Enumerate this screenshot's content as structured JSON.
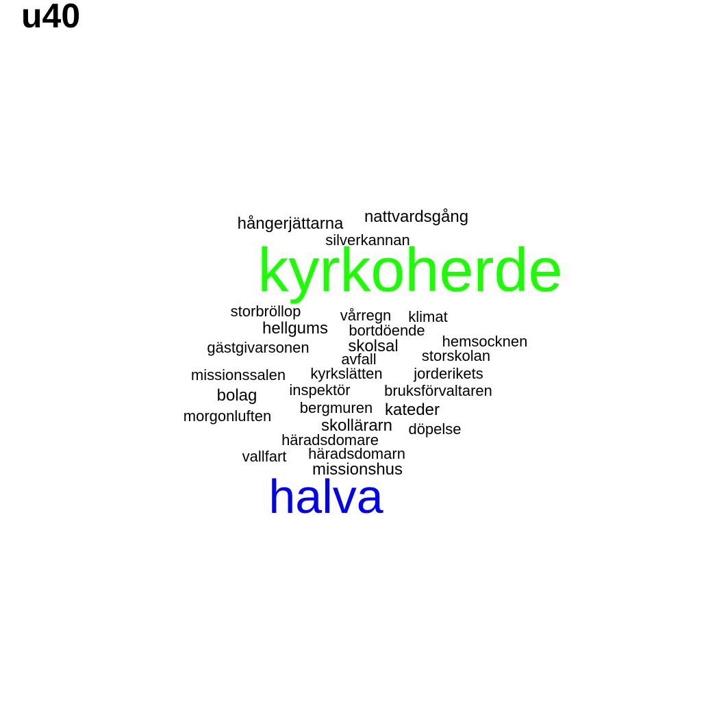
{
  "title": "u40",
  "words": [
    {
      "text": "kyrkoherde",
      "color": "#1aff00"
    },
    {
      "text": "halva",
      "color": "#0000ff"
    },
    {
      "text": "hångerjättarna",
      "color": "#000000"
    },
    {
      "text": "nattvardsgång",
      "color": "#000000"
    },
    {
      "text": "silverkannan",
      "color": "#000000"
    },
    {
      "text": "storbröllop",
      "color": "#000000"
    },
    {
      "text": "vårregn",
      "color": "#000000"
    },
    {
      "text": "klimat",
      "color": "#000000"
    },
    {
      "text": "hellgums",
      "color": "#000000"
    },
    {
      "text": "bortdöende",
      "color": "#000000"
    },
    {
      "text": "hemsocknen",
      "color": "#000000"
    },
    {
      "text": "gästgivarsonen",
      "color": "#000000"
    },
    {
      "text": "skolsal",
      "color": "#000000"
    },
    {
      "text": "storskolan",
      "color": "#000000"
    },
    {
      "text": "avfall",
      "color": "#000000"
    },
    {
      "text": "missionssalen",
      "color": "#000000"
    },
    {
      "text": "kyrkslätten",
      "color": "#000000"
    },
    {
      "text": "jorderikets",
      "color": "#000000"
    },
    {
      "text": "bolag",
      "color": "#000000"
    },
    {
      "text": "inspektör",
      "color": "#000000"
    },
    {
      "text": "bruksförvaltaren",
      "color": "#000000"
    },
    {
      "text": "morgonluften",
      "color": "#000000"
    },
    {
      "text": "bergmuren",
      "color": "#000000"
    },
    {
      "text": "kateder",
      "color": "#000000"
    },
    {
      "text": "skollärarn",
      "color": "#000000"
    },
    {
      "text": "döpelse",
      "color": "#000000"
    },
    {
      "text": "häradsdomare",
      "color": "#000000"
    },
    {
      "text": "vallfart",
      "color": "#000000"
    },
    {
      "text": "häradsdomarn",
      "color": "#000000"
    },
    {
      "text": "missionshus",
      "color": "#000000"
    }
  ]
}
